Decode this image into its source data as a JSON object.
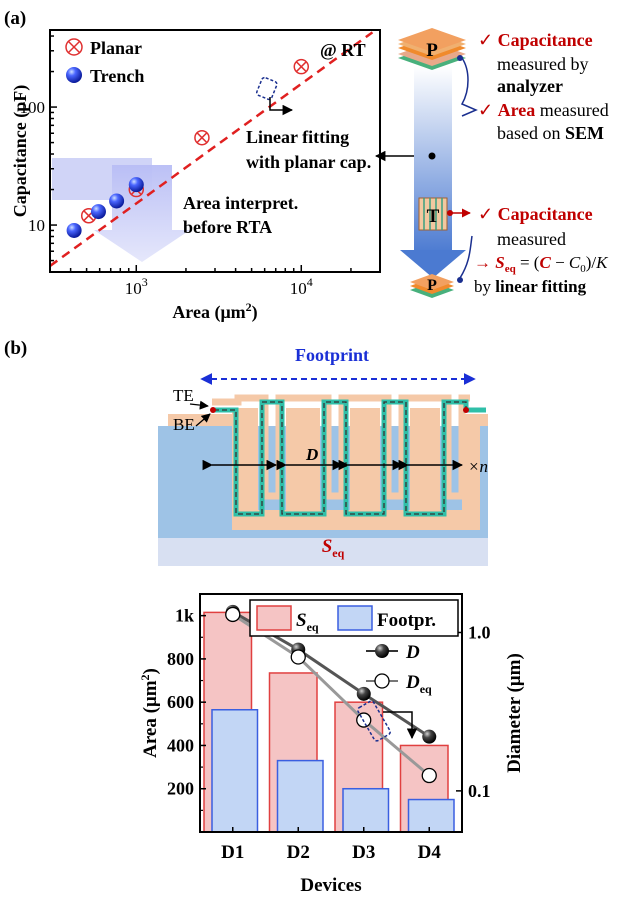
{
  "panel_a": {
    "label": "(a)",
    "rt_label": "@ RT",
    "fit_text_1": "Linear fitting",
    "fit_text_2": "with planar cap.",
    "interp_text_1": "Area interpret.",
    "interp_text_2": "before RTA",
    "p_letter": "P",
    "t_letter": "T",
    "ann1_a": "Capacitance",
    "ann1_b": "measured by",
    "ann1_c": "analyzer",
    "ann2_a": "Area",
    "ann2_b": " measured",
    "ann2_c": "based on ",
    "ann2_d": "SEM",
    "ann3_a": "Capacitance",
    "ann3_b": "measured",
    "ann4_a": "→ ",
    "ann4_s": "S",
    "ann4_sub": "eq",
    "ann4_eq": " = (",
    "ann4_c": "C",
    "ann4_minus": " − ",
    "ann4_c0": "C",
    "ann4_c0sub": "0",
    "ann4_div": ")/",
    "ann4_k": "K",
    "ann5_a": "by ",
    "ann5_b": "linear fitting",
    "check": "✓"
  },
  "panel_b": {
    "label": "(b)",
    "footprint": "Footprint",
    "te": "TE",
    "be": "BE",
    "d_label": "D",
    "times_n": "×n",
    "seq_s": "S",
    "seq_sub": "eq"
  },
  "colors": {
    "planar": "#e03030",
    "trench": "#1a2fd6",
    "fit": "#e02020",
    "accent_red": "#c00000",
    "blue_text": "#1a2fd6",
    "seq_fill": "#f5c4c4",
    "seq_edge": "#e04040",
    "foot_fill": "#c2d6f5",
    "foot_edge": "#3a5fe0"
  },
  "chart_data": [
    {
      "type": "scatter",
      "xlabel": "Area (μm²)",
      "ylabel": "Capacitance (pF)",
      "x_scale": "log",
      "y_scale": "log",
      "xlim": [
        300,
        30000
      ],
      "ylim": [
        4,
        450
      ],
      "x_ticks": [
        {
          "v": 1000,
          "base": "10",
          "exp": "3"
        },
        {
          "v": 10000,
          "base": "10",
          "exp": "4"
        }
      ],
      "y_ticks": [
        {
          "v": 10,
          "label": "10"
        },
        {
          "v": 100,
          "label": "100"
        }
      ],
      "legend": "top-left",
      "series": [
        {
          "name": "Planar",
          "marker": "circle-x",
          "x": [
            515,
            1000,
            2500,
            10000
          ],
          "y": [
            12,
            20,
            55,
            220
          ]
        },
        {
          "name": "Trench",
          "marker": "sphere",
          "x": [
            420,
            590,
            760,
            1000
          ],
          "y": [
            9,
            13,
            16,
            22
          ]
        }
      ],
      "fit_line": {
        "x": [
          300,
          27000
        ],
        "y": [
          4.5,
          430
        ]
      }
    },
    {
      "type": "bar",
      "xlabel": "Devices",
      "ylabel": "Area (μm²)",
      "y2label": "Diameter (μm)",
      "categories": [
        "D1",
        "D2",
        "D3",
        "D4"
      ],
      "ylim": [
        0,
        1100
      ],
      "y_ticks": [
        {
          "v": 200,
          "label": "200"
        },
        {
          "v": 400,
          "label": "400"
        },
        {
          "v": 600,
          "label": "600"
        },
        {
          "v": 800,
          "label": "800"
        },
        {
          "v": 1000,
          "label": "1k"
        }
      ],
      "y2_scale": "log",
      "y2lim": [
        0.055,
        1.75
      ],
      "y2_ticks": [
        {
          "v": 0.1,
          "label": "0.1"
        },
        {
          "v": 1.0,
          "label": "1.0"
        }
      ],
      "legend": "top",
      "series": [
        {
          "name": "S",
          "name_sub": "eq",
          "values": [
            1015,
            735,
            600,
            400
          ]
        },
        {
          "name": "Footpr.",
          "values": [
            565,
            330,
            200,
            150
          ]
        }
      ],
      "line_series": [
        {
          "name": "D",
          "values": [
            1.35,
            0.78,
            0.41,
            0.22
          ]
        },
        {
          "name": "D",
          "name_sub": "eq",
          "values": [
            1.3,
            0.7,
            0.28,
            0.125
          ]
        }
      ]
    }
  ]
}
